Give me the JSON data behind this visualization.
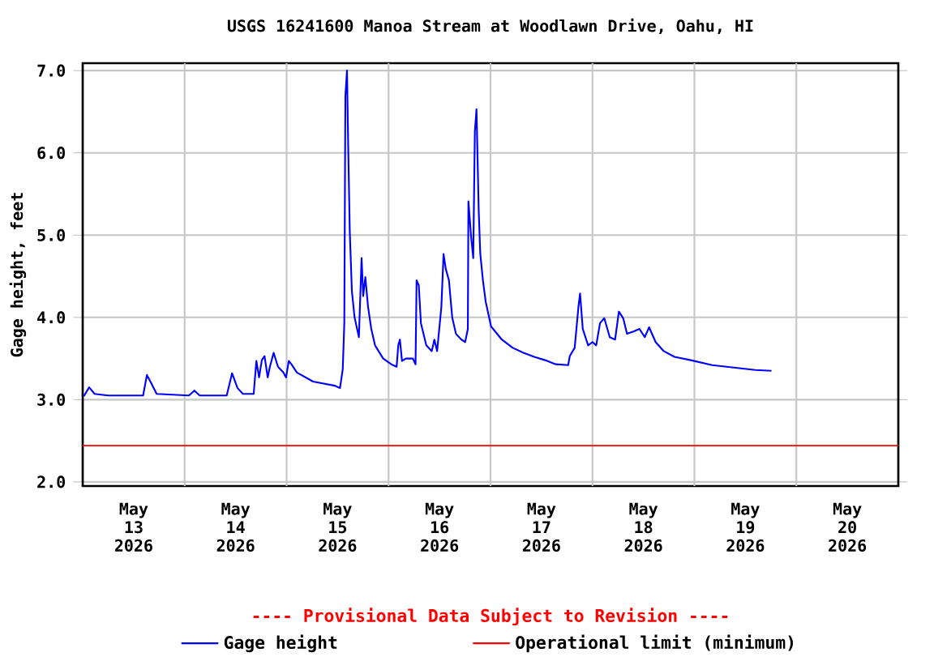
{
  "chart_data": {
    "type": "line",
    "title": "USGS 16241600 Manoa Stream at Woodlawn Drive, Oahu, HI",
    "ylabel": "Gage height, feet",
    "annotations": [
      "---- Provisional Data Subject to Revision ----"
    ],
    "xlim": [
      "2026-05-13T00:00",
      "2026-05-21T00:00"
    ],
    "xticks": [
      {
        "value": "2026-05-13T12:00",
        "label": "May 13 2026"
      },
      {
        "value": "2026-05-14T00:00",
        "label": null
      },
      {
        "value": "2026-05-14T12:00",
        "label": "May 14 2026"
      },
      {
        "value": "2026-05-15T00:00",
        "label": null
      },
      {
        "value": "2026-05-15T12:00",
        "label": "May 15 2026"
      },
      {
        "value": "2026-05-16T00:00",
        "label": null
      },
      {
        "value": "2026-05-16T12:00",
        "label": "May 16 2026"
      },
      {
        "value": "2026-05-17T00:00",
        "label": null
      },
      {
        "value": "2026-05-17T12:00",
        "label": "May 17 2026"
      },
      {
        "value": "2026-05-18T00:00",
        "label": null
      },
      {
        "value": "2026-05-18T12:00",
        "label": "May 18 2026"
      },
      {
        "value": "2026-05-19T00:00",
        "label": null
      },
      {
        "value": "2026-05-19T12:00",
        "label": "May 19 2026"
      },
      {
        "value": "2026-05-20T00:00",
        "label": null
      },
      {
        "value": "2026-05-20T12:00",
        "label": "May 20 2026"
      }
    ],
    "ylim": [
      1.95,
      7.09
    ],
    "yticks": [
      {
        "value": 2,
        "label": "2.0"
      },
      {
        "value": 3,
        "label": "3.0"
      },
      {
        "value": 4,
        "label": "4.0"
      },
      {
        "value": 5,
        "label": "5.0"
      },
      {
        "value": 6,
        "label": "6.0"
      },
      {
        "value": 7,
        "label": "7.0"
      }
    ],
    "grid": true,
    "legend": "bottom",
    "ref_lines": [
      {
        "axis": "y",
        "value": 2.44,
        "label": "Operational limit (minimum)",
        "color": "#ff0000"
      }
    ],
    "series": [
      {
        "name": "Gage height",
        "color": "#0000ff",
        "x": [
          "2026-05-13T00:15",
          "2026-05-13T01:31",
          "2026-05-13T02:48",
          "2026-05-13T05:58",
          "2026-05-13T14:13",
          "2026-05-13T15:07",
          "2026-05-13T16:08",
          "2026-05-13T17:24",
          "2026-05-14T01:00",
          "2026-05-14T02:17",
          "2026-05-14T03:33",
          "2026-05-14T09:54",
          "2026-05-14T11:10",
          "2026-05-14T12:27",
          "2026-05-14T13:43",
          "2026-05-14T16:15",
          "2026-05-14T16:53",
          "2026-05-14T17:31",
          "2026-05-14T18:10",
          "2026-05-14T18:48",
          "2026-05-14T19:33",
          "2026-05-14T20:04",
          "2026-05-14T20:57",
          "2026-05-14T21:58",
          "2026-05-14T23:14",
          "2026-05-14T23:52",
          "2026-05-15T00:31",
          "2026-05-15T01:08",
          "2026-05-15T02:25",
          "2026-05-15T06:13",
          "2026-05-15T11:18",
          "2026-05-15T12:34",
          "2026-05-15T13:13",
          "2026-05-15T13:35",
          "2026-05-15T13:50",
          "2026-05-15T14:13",
          "2026-05-15T14:29",
          "2026-05-15T14:52",
          "2026-05-15T15:22",
          "2026-05-15T16:00",
          "2026-05-15T17:01",
          "2026-05-15T17:39",
          "2026-05-15T18:02",
          "2026-05-15T18:32",
          "2026-05-15T19:10",
          "2026-05-15T19:56",
          "2026-05-15T20:49",
          "2026-05-15T22:44",
          "2026-05-16T00:38",
          "2026-05-16T01:54",
          "2026-05-16T02:17",
          "2026-05-16T02:40",
          "2026-05-16T03:10",
          "2026-05-16T04:04",
          "2026-05-16T05:43",
          "2026-05-16T06:21",
          "2026-05-16T06:36",
          "2026-05-16T07:07",
          "2026-05-16T07:37",
          "2026-05-16T08:53",
          "2026-05-16T10:10",
          "2026-05-16T10:47",
          "2026-05-16T11:26",
          "2026-05-16T12:04",
          "2026-05-16T12:26",
          "2026-05-16T12:57",
          "2026-05-16T13:28",
          "2026-05-16T14:13",
          "2026-05-16T14:59",
          "2026-05-16T15:52",
          "2026-05-16T17:08",
          "2026-05-16T18:02",
          "2026-05-16T18:40",
          "2026-05-16T18:48",
          "2026-05-16T19:26",
          "2026-05-16T19:56",
          "2026-05-16T20:19",
          "2026-05-16T20:42",
          "2026-05-16T21:13",
          "2026-05-16T21:35",
          "2026-05-16T22:13",
          "2026-05-16T22:52",
          "2026-05-17T00:08",
          "2026-05-17T02:40",
          "2026-05-17T05:13",
          "2026-05-17T07:45",
          "2026-05-17T10:17",
          "2026-05-17T12:50",
          "2026-05-17T15:22",
          "2026-05-17T18:17",
          "2026-05-17T18:40",
          "2026-05-17T19:49",
          "2026-05-17T20:42",
          "2026-05-17T21:05",
          "2026-05-17T21:43",
          "2026-05-17T22:59",
          "2026-05-18T00:00",
          "2026-05-18T00:53",
          "2026-05-18T01:47",
          "2026-05-18T02:47",
          "2026-05-18T04:04",
          "2026-05-18T05:20",
          "2026-05-18T06:13",
          "2026-05-18T07:14",
          "2026-05-18T08:08",
          "2026-05-18T09:47",
          "2026-05-18T11:03",
          "2026-05-18T12:19",
          "2026-05-18T13:20",
          "2026-05-18T14:52",
          "2026-05-18T16:46",
          "2026-05-18T19:18",
          "2026-05-18T23:07",
          "2026-05-19T04:11",
          "2026-05-19T09:16",
          "2026-05-19T14:21",
          "2026-05-19T18:09"
        ],
        "values": [
          3.04,
          3.15,
          3.07,
          3.05,
          3.05,
          3.3,
          3.2,
          3.07,
          3.05,
          3.11,
          3.05,
          3.05,
          3.32,
          3.14,
          3.07,
          3.07,
          3.47,
          3.27,
          3.48,
          3.53,
          3.27,
          3.4,
          3.57,
          3.4,
          3.33,
          3.27,
          3.47,
          3.43,
          3.33,
          3.22,
          3.17,
          3.14,
          3.37,
          3.93,
          6.69,
          7.0,
          6.13,
          5.05,
          4.32,
          4.0,
          3.76,
          4.72,
          4.26,
          4.49,
          4.13,
          3.86,
          3.66,
          3.5,
          3.43,
          3.4,
          3.66,
          3.73,
          3.47,
          3.5,
          3.5,
          3.43,
          4.45,
          4.39,
          3.93,
          3.66,
          3.59,
          3.73,
          3.59,
          3.93,
          4.13,
          4.77,
          4.59,
          4.45,
          4.0,
          3.8,
          3.73,
          3.7,
          3.86,
          5.41,
          4.98,
          4.72,
          6.26,
          6.53,
          5.31,
          4.78,
          4.45,
          4.19,
          3.89,
          3.73,
          3.63,
          3.57,
          3.52,
          3.48,
          3.43,
          3.42,
          3.53,
          3.63,
          4.13,
          4.29,
          3.86,
          3.66,
          3.7,
          3.66,
          3.93,
          3.99,
          3.76,
          3.73,
          4.07,
          3.99,
          3.8,
          3.83,
          3.86,
          3.76,
          3.88,
          3.7,
          3.59,
          3.52,
          3.48,
          3.42,
          3.39,
          3.36,
          3.35
        ]
      }
    ]
  }
}
